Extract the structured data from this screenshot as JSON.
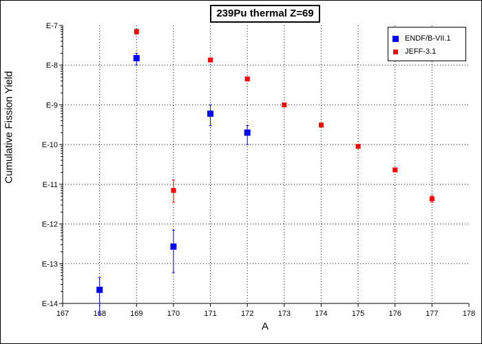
{
  "chart_data": {
    "type": "scatter",
    "title": "239Pu thermal Z=69",
    "xlabel": "A",
    "ylabel": "Cumulative Fission Yield",
    "xlim": [
      167,
      178
    ],
    "ylim": [
      1e-14,
      1e-07
    ],
    "yscale": "log",
    "grid": true,
    "legend_position": "top-right",
    "x_ticks": [
      "167",
      "168",
      "169",
      "170",
      "171",
      "172",
      "173",
      "174",
      "175",
      "176",
      "177",
      "178"
    ],
    "y_ticks": [
      "E-7",
      "E-8",
      "E-9",
      "E-10",
      "E-11",
      "E-12",
      "E-13",
      "E-14"
    ],
    "series": [
      {
        "name": "ENDF/B-VII.1",
        "color": "#0000ff",
        "marker": "square",
        "points": [
          {
            "x": 168,
            "y": 2.2e-14,
            "err_low": 5e-15,
            "err_high": 4.5e-14
          },
          {
            "x": 169,
            "y": 1.5e-08,
            "err_low": 1e-08,
            "err_high": 2e-08
          },
          {
            "x": 170,
            "y": 2.7e-13,
            "err_low": 6e-14,
            "err_high": 7e-13
          },
          {
            "x": 171,
            "y": 6e-10,
            "err_low": 3e-10,
            "err_high": 1e-09
          },
          {
            "x": 172,
            "y": 2e-10,
            "err_low": 1e-10,
            "err_high": 3e-10
          }
        ]
      },
      {
        "name": "JEFF-3.1",
        "color": "#ff0000",
        "marker": "square",
        "points": [
          {
            "x": 169,
            "y": 7e-08,
            "err_low": 6e-08,
            "err_high": 8e-08
          },
          {
            "x": 170,
            "y": 7e-12,
            "err_low": 3.5e-12,
            "err_high": 1.3e-11
          },
          {
            "x": 171,
            "y": 1.35e-08,
            "err_low": 1.2e-08,
            "err_high": 1.5e-08
          },
          {
            "x": 172,
            "y": 4.5e-09,
            "err_low": 4e-09,
            "err_high": 5e-09
          },
          {
            "x": 173,
            "y": 1e-09,
            "err_low": 9e-10,
            "err_high": 1.1e-09
          },
          {
            "x": 174,
            "y": 3.1e-10,
            "err_low": 2.8e-10,
            "err_high": 3.4e-10
          },
          {
            "x": 175,
            "y": 9e-11,
            "err_low": 8e-11,
            "err_high": 1e-10
          },
          {
            "x": 176,
            "y": 2.3e-11,
            "err_low": 2.1e-11,
            "err_high": 2.5e-11
          },
          {
            "x": 177,
            "y": 4.3e-12,
            "err_low": 3.5e-12,
            "err_high": 5.2e-12
          }
        ]
      }
    ]
  }
}
